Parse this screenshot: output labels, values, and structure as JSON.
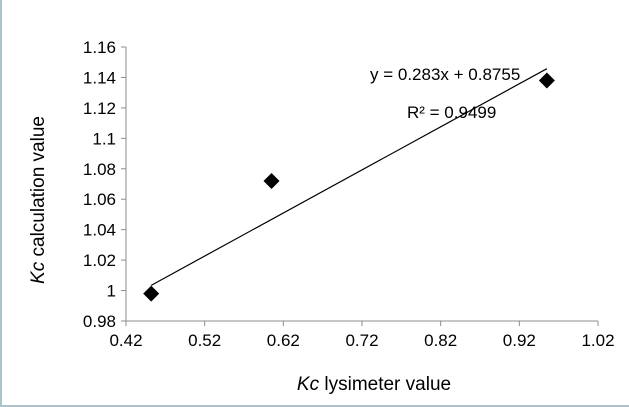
{
  "chart_data": {
    "type": "scatter",
    "title": "",
    "xlabel_italic": "Kc",
    "xlabel_rest": " lysimeter value",
    "ylabel_italic": "Kc",
    "ylabel_rest": " calculation value",
    "xlim": [
      0.42,
      1.02
    ],
    "ylim": [
      0.98,
      1.16
    ],
    "x_ticks": [
      0.42,
      0.52,
      0.62,
      0.72,
      0.82,
      0.92,
      1.02
    ],
    "y_ticks": [
      0.98,
      1.0,
      1.02,
      1.04,
      1.06,
      1.08,
      1.1,
      1.12,
      1.14,
      1.16
    ],
    "x_tick_labels": [
      "0.42",
      "0.52",
      "0.62",
      "0.72",
      "0.82",
      "0.92",
      "1.02"
    ],
    "y_tick_labels": [
      "0.98",
      "1",
      "1.02",
      "1.04",
      "1.06",
      "1.08",
      "1.1",
      "1.12",
      "1.14",
      "1.16"
    ],
    "grid": false,
    "marker": "diamond",
    "marker_color": "#000000",
    "points": [
      {
        "x": 0.452,
        "y": 0.998
      },
      {
        "x": 0.605,
        "y": 1.072
      },
      {
        "x": 0.955,
        "y": 1.138
      }
    ],
    "trendline": {
      "slope": 0.283,
      "intercept": 0.8755,
      "x_range": [
        0.452,
        0.955
      ],
      "equation": "y = 0.283x + 0.8755",
      "r_squared": "R² = 0.9499"
    }
  }
}
